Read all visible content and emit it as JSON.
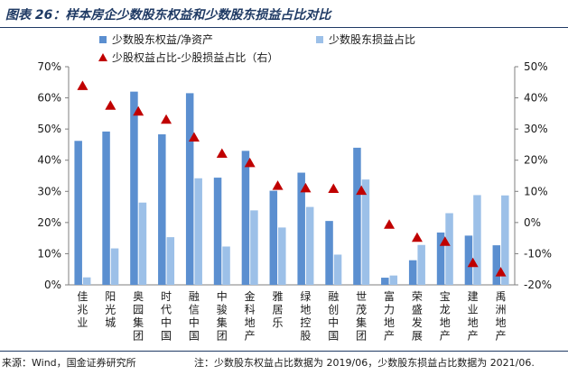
{
  "figure": {
    "title": "图表 26：样本房企少数股东权益和少数股东损益占比对比",
    "source": "来源：Wind，国金证券研究所",
    "note": "注：少数股东权益占比数据为 2019/06，少数股东损益占比数据为 2021/06."
  },
  "colors": {
    "bar_equity": "#5b8fd0",
    "bar_profit": "#9cc0e8",
    "triangle": "#c00000",
    "title": "#1f3a64"
  },
  "chart_data": {
    "type": "bar",
    "categories": [
      "佳兆业",
      "阳光城",
      "奥园集团",
      "时代中国",
      "融信中国",
      "中骏集团",
      "金科地产",
      "雅居乐",
      "绿地控股",
      "融创中国",
      "世茂集团",
      "富力地产",
      "荣盛发展",
      "宝龙地产",
      "建业地产",
      "禹洲地产"
    ],
    "series": [
      {
        "name": "少数股东权益/净资产",
        "axis": "left",
        "type": "bar",
        "values": [
          46.2,
          49.2,
          62.0,
          48.3,
          61.5,
          34.4,
          43.0,
          30.2,
          36.0,
          20.5,
          44.0,
          2.3,
          7.9,
          16.8,
          15.8,
          12.7
        ]
      },
      {
        "name": "少数股东损益占比",
        "axis": "left",
        "type": "bar",
        "values": [
          2.4,
          11.7,
          26.4,
          15.3,
          34.2,
          12.3,
          23.9,
          18.4,
          25.0,
          9.7,
          33.8,
          3.0,
          12.8,
          23.0,
          28.8,
          28.7
        ]
      },
      {
        "name": "少股权益占比-少股损益占比（右）",
        "axis": "right",
        "type": "scatter",
        "marker": "triangle",
        "values": [
          43.8,
          37.5,
          35.6,
          33.0,
          27.3,
          22.1,
          19.1,
          11.8,
          11.0,
          10.8,
          10.2,
          -0.7,
          -4.9,
          -6.2,
          -13.0,
          -16.0
        ]
      }
    ],
    "left_axis": {
      "min": 0,
      "max": 70,
      "step": 10,
      "unit": "%"
    },
    "right_axis": {
      "min": -20,
      "max": 50,
      "step": 10,
      "unit": "%"
    },
    "legend_position": "top",
    "grid": false
  }
}
